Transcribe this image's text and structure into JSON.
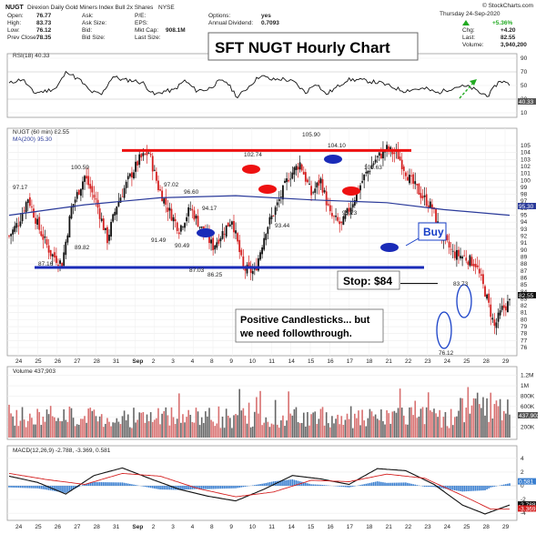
{
  "header": {
    "symbol": "NUGT",
    "name": "Direxion Daily Gold Miners Index Bull 2x Shares",
    "exchange": "NYSE",
    "watermark": "© StockCharts.com",
    "date": "Thursday  24-Sep-2020",
    "left_labels": [
      "Open:",
      "High:",
      "Low:",
      "Prev Close:"
    ],
    "left_values": [
      "76.77",
      "83.73",
      "76.12",
      "78.35"
    ],
    "mid_labels": [
      "Ask:",
      "Ask Size:",
      "Bid:",
      "Bid Size:"
    ],
    "mid2_labels": [
      "P/E:",
      "EPS:",
      "Mkt Cap:",
      "Last Size:"
    ],
    "mid2_values": [
      "",
      "",
      "908.1M",
      ""
    ],
    "opt_labels": [
      "Options:",
      "Annual Dividend:"
    ],
    "opt_values": [
      "yes",
      "0.7093"
    ],
    "change_pct": "+5.36%",
    "right_labels": [
      "Chg:",
      "Last:",
      "Volume:"
    ],
    "right_values": [
      "+4.20",
      "82.55",
      "3,940,200"
    ]
  },
  "rsi": {
    "label": "RSI(18) 40.33",
    "ticks": [
      "90",
      "70",
      "50",
      "30",
      "10"
    ],
    "tag": "40.33"
  },
  "price": {
    "label": "NUGT (60 min) 82.55",
    "ma_label": "MA(200) 95.30",
    "ticks": [
      "105",
      "104",
      "103",
      "102",
      "101",
      "100",
      "99",
      "98",
      "97",
      "96",
      "95",
      "94",
      "93",
      "92",
      "91",
      "90",
      "89",
      "88",
      "87",
      "86",
      "85",
      "84",
      "83",
      "82",
      "81",
      "80",
      "79",
      "78",
      "77",
      "76"
    ],
    "tag_ma": "95.30",
    "tag_last": "82.55",
    "point_labels": [
      "97.17",
      "100.59",
      "89.82",
      "87.16",
      "97.02",
      "96.60",
      "91.49",
      "90.49",
      "94.17",
      "87.03",
      "86.25",
      "102.74",
      "93.44",
      "105.90",
      "104.10",
      "100.63",
      "95.23",
      "83.73",
      "76.12"
    ]
  },
  "volume": {
    "label": "Volume 437,903",
    "ticks": [
      "1.2M",
      "1M",
      "800K",
      "600K",
      "400K",
      "200K"
    ],
    "tag": "437,903"
  },
  "macd": {
    "label": "MACD(12,26,9) -2.788, -3.369, 0.581",
    "ticks": [
      "4",
      "2",
      "0",
      "-2",
      "-4"
    ],
    "tags": [
      "0.581",
      "-2.788",
      "-3.369"
    ]
  },
  "x_axis": {
    "ticks": [
      "24",
      "25",
      "26",
      "27",
      "28",
      "31",
      "Sep",
      "2",
      "3",
      "4",
      "8",
      "9",
      "10",
      "11",
      "14",
      "15",
      "16",
      "17",
      "18",
      "21",
      "22",
      "23",
      "24",
      "25",
      "28",
      "29"
    ]
  },
  "annotations": {
    "title": "SFT NUGT Hourly Chart",
    "buy": "Buy",
    "stop": "Stop: $84",
    "note_line1": "Positive Candlesticks... but",
    "note_line2": "we need followthrough."
  },
  "colors": {
    "up": "#111111",
    "down": "#d42020",
    "support": "#1a2bb8",
    "resistance": "#ee1111",
    "ma": "#2a3a9a",
    "macd_hist": "#3a7fd0",
    "signal": "#d42020",
    "annotation_blue": "#1840c8",
    "arrow": "#22aa22"
  },
  "chart_data": {
    "type": "candlestick",
    "title": "SFT NUGT Hourly Chart",
    "interval": "60 min",
    "support_level": 87.5,
    "resistance_level": 104.3,
    "stop_level": 84,
    "ylim": [
      75,
      106
    ],
    "key_points": [
      {
        "label": "97.17",
        "value": 97.17
      },
      {
        "label": "100.59",
        "value": 100.59
      },
      {
        "label": "89.82",
        "value": 89.82
      },
      {
        "label": "87.16",
        "value": 87.16
      },
      {
        "label": "97.02",
        "value": 97.02
      },
      {
        "label": "96.60",
        "value": 96.6
      },
      {
        "label": "91.49",
        "value": 91.49
      },
      {
        "label": "90.49",
        "value": 90.49
      },
      {
        "label": "94.17",
        "value": 94.17
      },
      {
        "label": "87.03",
        "value": 87.03
      },
      {
        "label": "86.25",
        "value": 86.25
      },
      {
        "label": "102.74",
        "value": 102.74
      },
      {
        "label": "93.44",
        "value": 93.44
      },
      {
        "label": "105.90",
        "value": 105.9
      },
      {
        "label": "104.10",
        "value": 104.1
      },
      {
        "label": "100.63",
        "value": 100.63
      },
      {
        "label": "95.23",
        "value": 95.23
      },
      {
        "label": "83.73",
        "value": 83.73
      },
      {
        "label": "76.12",
        "value": 76.12
      }
    ],
    "rsi_last": 40.33,
    "volume_last": 437903,
    "macd_last": {
      "macd": -2.788,
      "signal": -3.369,
      "hist": 0.581
    }
  }
}
